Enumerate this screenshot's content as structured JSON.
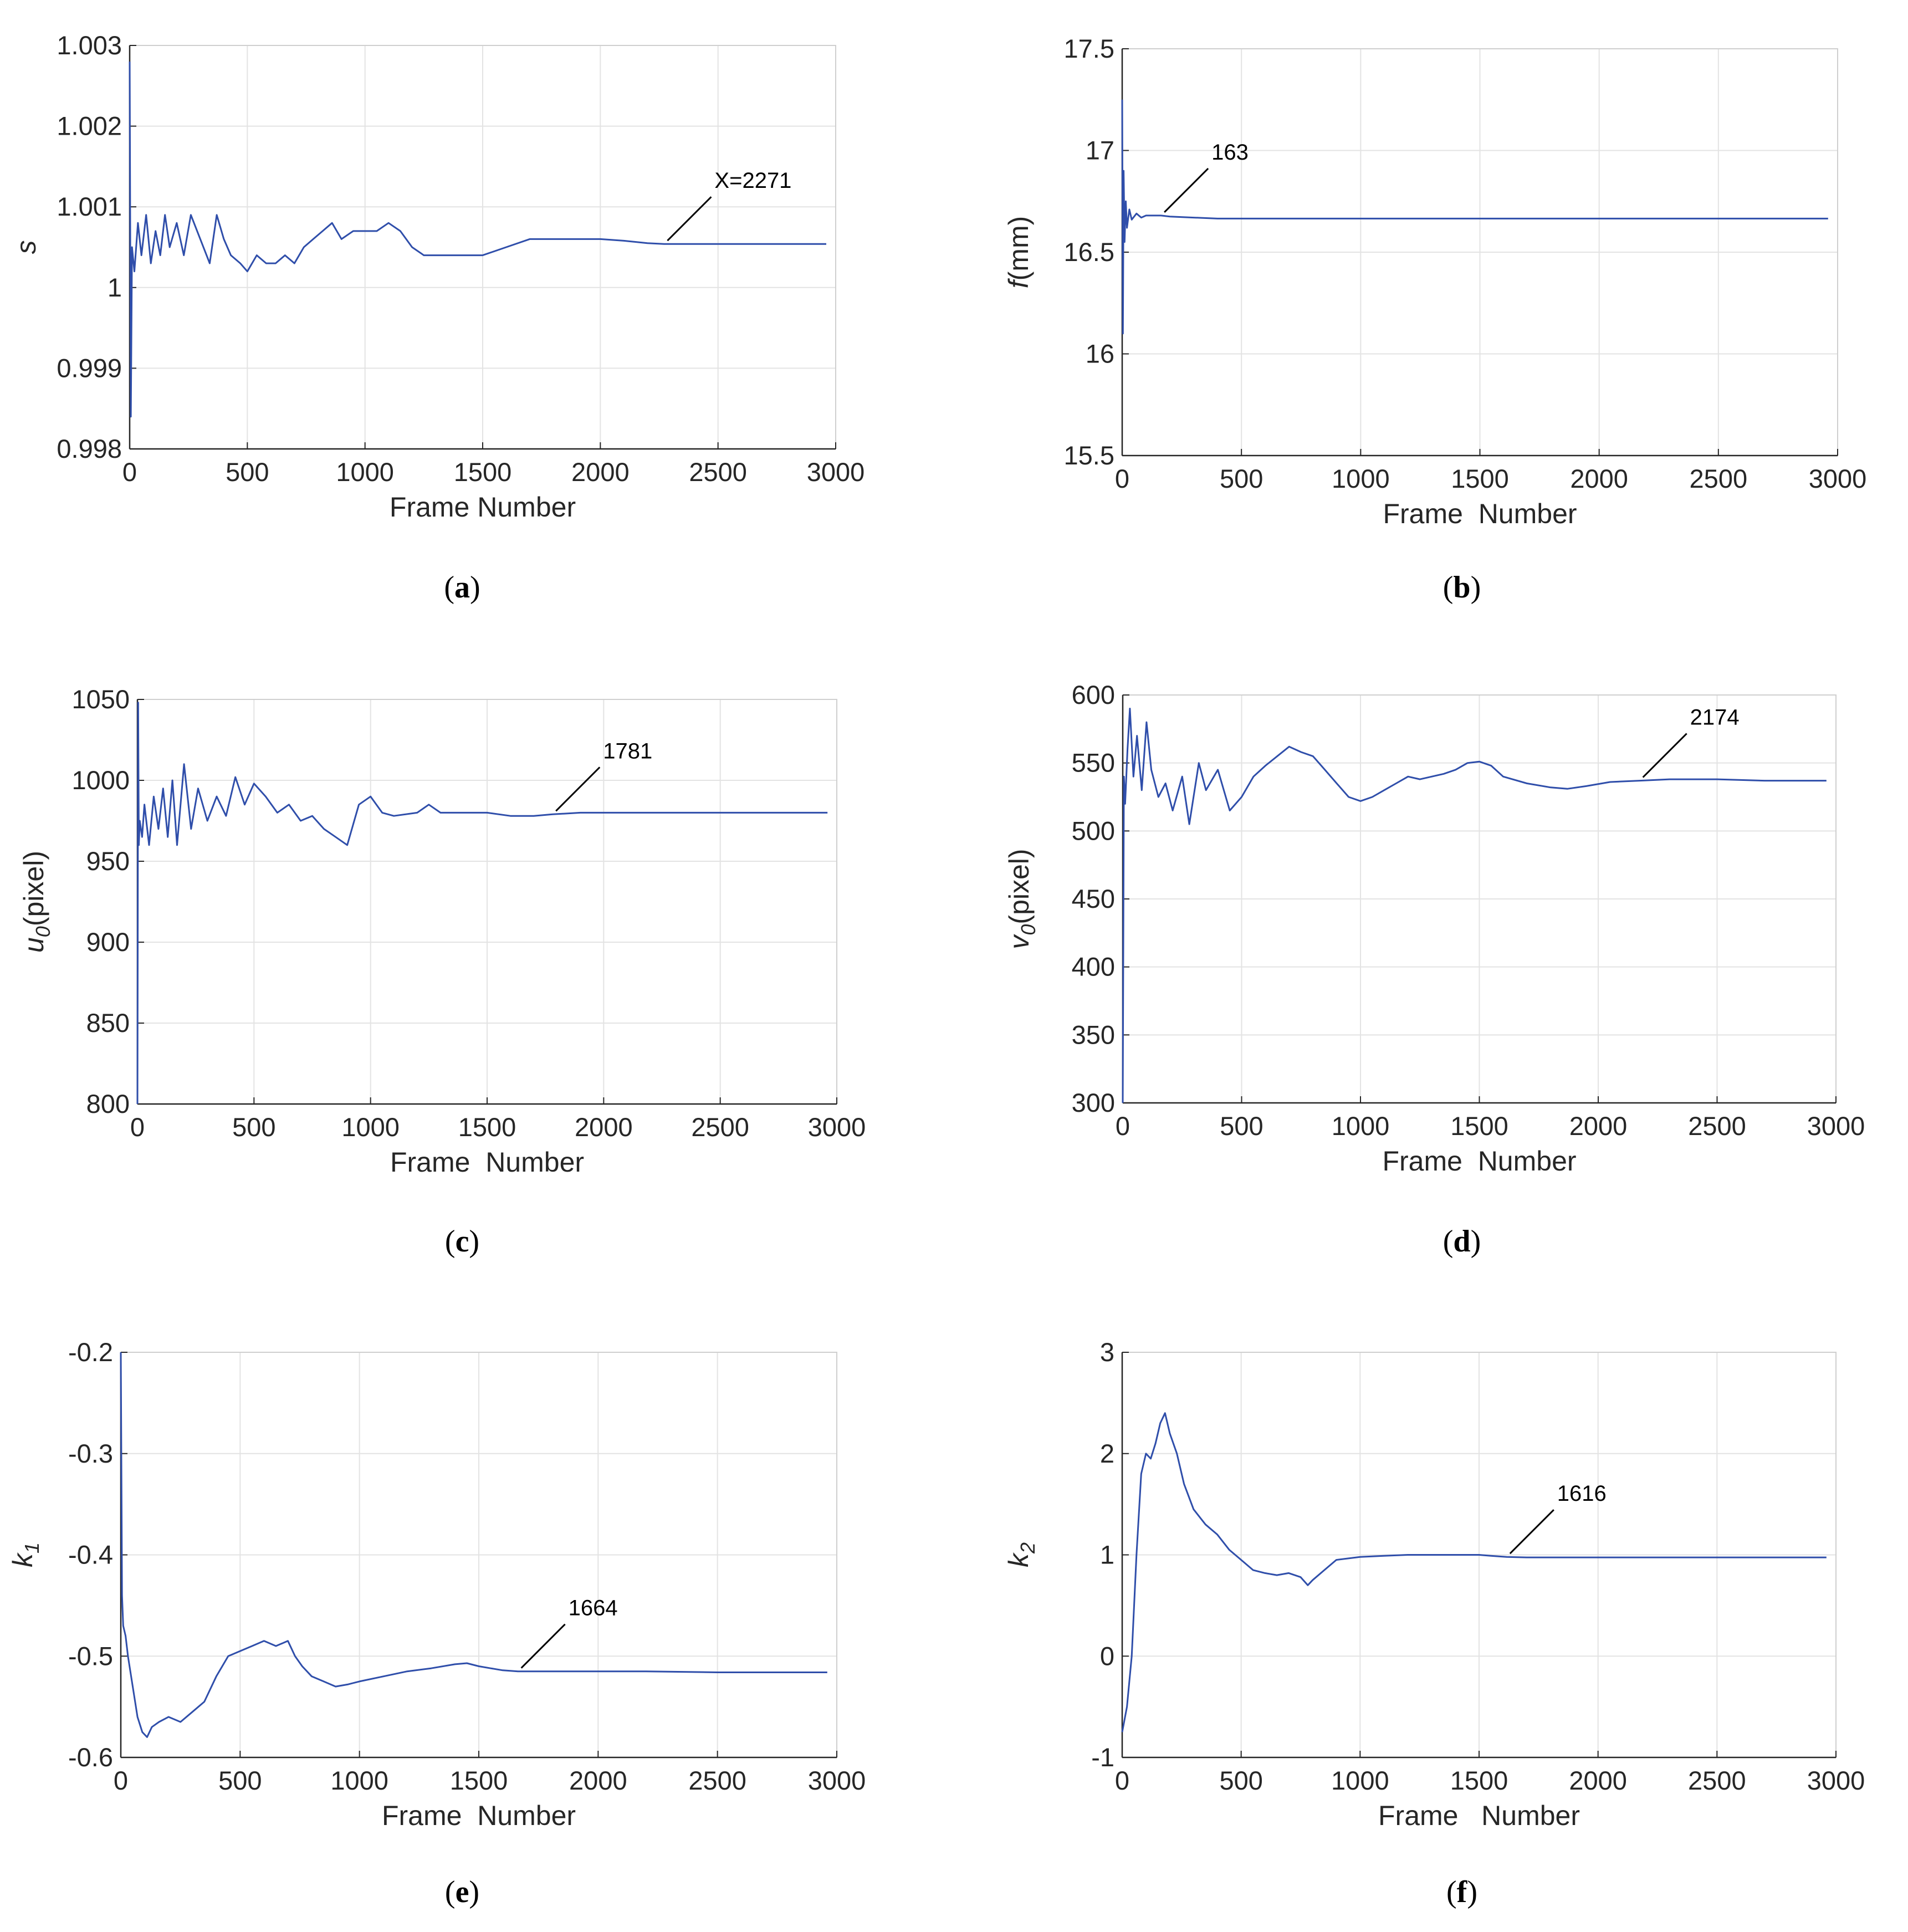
{
  "chart_data": [
    {
      "id": "a",
      "type": "line",
      "caption": "a",
      "xlabel": "Frame Number",
      "ylabel": "s",
      "ylabel_italic": true,
      "xlim": [
        0,
        3000
      ],
      "ylim": [
        0.998,
        1.003
      ],
      "xticks": [
        0,
        500,
        1000,
        1500,
        2000,
        2500,
        3000
      ],
      "yticks": [
        0.998,
        0.999,
        1,
        1.001,
        1.002,
        1.003
      ],
      "ytick_labels": [
        "0.998",
        "0.999",
        "1",
        "1.001",
        "1.002",
        "1.003"
      ],
      "grid": true,
      "line_color": "#2f4eaa",
      "series": [
        {
          "x": [
            0,
            5,
            10,
            20,
            35,
            50,
            70,
            90,
            110,
            130,
            150,
            170,
            200,
            230,
            260,
            300,
            340,
            370,
            400,
            430,
            470,
            500,
            540,
            580,
            620,
            660,
            700,
            740,
            780,
            820,
            860,
            900,
            950,
            1000,
            1050,
            1100,
            1150,
            1200,
            1250,
            1300,
            1350,
            1400,
            1450,
            1500,
            1600,
            1700,
            1800,
            1900,
            2000,
            2100,
            2200,
            2271,
            2400,
            2600,
            2800,
            2960
          ],
          "y": [
            1.0028,
            0.9984,
            1.0005,
            1.0002,
            1.0008,
            1.0004,
            1.0009,
            1.0003,
            1.0007,
            1.0004,
            1.0009,
            1.0005,
            1.0008,
            1.0004,
            1.0009,
            1.0006,
            1.0003,
            1.0009,
            1.0006,
            1.0004,
            1.0003,
            1.0002,
            1.0004,
            1.0003,
            1.0003,
            1.0004,
            1.0003,
            1.0005,
            1.0006,
            1.0007,
            1.0008,
            1.0006,
            1.0007,
            1.0007,
            1.0007,
            1.0008,
            1.0007,
            1.0005,
            1.0004,
            1.0004,
            1.0004,
            1.0004,
            1.0004,
            1.0004,
            1.0005,
            1.0006,
            1.0006,
            1.0006,
            1.0006,
            1.00058,
            1.00055,
            1.00054,
            1.00054,
            1.00054,
            1.00054,
            1.00054
          ]
        }
      ],
      "annotations": [
        {
          "text": "X=2271",
          "x": 2271,
          "y": 1.00054
        }
      ]
    },
    {
      "id": "b",
      "type": "line",
      "caption": "b",
      "xlabel": "Frame  Number",
      "ylabel": "f(mm)",
      "ylabel_italic_prefix": "f",
      "xlim": [
        0,
        3000
      ],
      "ylim": [
        15.5,
        17.5
      ],
      "xticks": [
        0,
        500,
        1000,
        1500,
        2000,
        2500,
        3000
      ],
      "yticks": [
        15.5,
        16,
        16.5,
        17,
        17.5
      ],
      "ytick_labels": [
        "15.5",
        "16",
        "16.5",
        "17",
        "17.5"
      ],
      "grid": true,
      "line_color": "#2f4eaa",
      "series": [
        {
          "x": [
            0,
            3,
            6,
            10,
            15,
            20,
            30,
            40,
            60,
            80,
            100,
            130,
            163,
            200,
            300,
            400,
            500,
            700,
            1000,
            1500,
            2000,
            2500,
            2960
          ],
          "y": [
            17.25,
            16.1,
            16.9,
            16.55,
            16.75,
            16.62,
            16.71,
            16.66,
            16.69,
            16.67,
            16.68,
            16.68,
            16.68,
            16.675,
            16.67,
            16.665,
            16.665,
            16.665,
            16.665,
            16.665,
            16.665,
            16.665,
            16.665
          ]
        }
      ],
      "annotations": [
        {
          "text": "163",
          "x": 163,
          "y": 16.68
        }
      ]
    },
    {
      "id": "c",
      "type": "line",
      "caption": "c",
      "xlabel": "Frame  Number",
      "ylabel": "u0(pixel)",
      "ylabel_main": "u",
      "ylabel_sub": "0",
      "ylabel_rest": "(pixel)",
      "xlim": [
        0,
        3000
      ],
      "ylim": [
        800,
        1050
      ],
      "xticks": [
        0,
        500,
        1000,
        1500,
        2000,
        2500,
        3000
      ],
      "yticks": [
        800,
        850,
        900,
        950,
        1000,
        1050
      ],
      "ytick_labels": [
        "800",
        "850",
        "900",
        "950",
        "1000",
        "1050"
      ],
      "grid": true,
      "line_color": "#2f4eaa",
      "series": [
        {
          "x": [
            0,
            3,
            6,
            10,
            20,
            30,
            50,
            70,
            90,
            110,
            130,
            150,
            170,
            200,
            230,
            260,
            300,
            340,
            380,
            420,
            460,
            500,
            550,
            600,
            650,
            700,
            750,
            800,
            850,
            900,
            950,
            1000,
            1050,
            1100,
            1200,
            1250,
            1300,
            1400,
            1500,
            1600,
            1700,
            1781,
            1900,
            2100,
            2400,
            2700,
            2960
          ],
          "y": [
            800,
            1048,
            960,
            975,
            965,
            985,
            960,
            990,
            970,
            995,
            965,
            1000,
            960,
            1010,
            970,
            995,
            975,
            990,
            978,
            1002,
            985,
            998,
            990,
            980,
            985,
            975,
            978,
            970,
            965,
            960,
            985,
            990,
            980,
            978,
            980,
            985,
            980,
            980,
            980,
            978,
            978,
            979,
            980,
            980,
            980,
            980,
            980
          ]
        }
      ],
      "annotations": [
        {
          "text": "1781",
          "x": 1781,
          "y": 979
        }
      ]
    },
    {
      "id": "d",
      "type": "line",
      "caption": "d",
      "xlabel": "Frame  Number",
      "ylabel": "v0(pixel)",
      "ylabel_main": "v",
      "ylabel_sub": "0",
      "ylabel_rest": "(pixel)",
      "xlim": [
        0,
        3000
      ],
      "ylim": [
        300,
        600
      ],
      "xticks": [
        0,
        500,
        1000,
        1500,
        2000,
        2500,
        3000
      ],
      "yticks": [
        300,
        350,
        400,
        450,
        500,
        550,
        600
      ],
      "ytick_labels": [
        "300",
        "350",
        "400",
        "450",
        "500",
        "550",
        "600"
      ],
      "grid": true,
      "line_color": "#2f4eaa",
      "series": [
        {
          "x": [
            0,
            5,
            10,
            20,
            30,
            45,
            60,
            80,
            100,
            120,
            150,
            180,
            210,
            250,
            280,
            320,
            350,
            400,
            450,
            500,
            550,
            600,
            650,
            700,
            750,
            800,
            850,
            900,
            950,
            1000,
            1050,
            1100,
            1150,
            1200,
            1250,
            1300,
            1350,
            1400,
            1450,
            1500,
            1550,
            1600,
            1700,
            1800,
            1870,
            1950,
            2050,
            2174,
            2300,
            2500,
            2700,
            2960
          ],
          "y": [
            300,
            540,
            520,
            560,
            590,
            540,
            570,
            530,
            580,
            545,
            525,
            535,
            515,
            540,
            505,
            550,
            530,
            545,
            515,
            525,
            540,
            548,
            555,
            562,
            558,
            555,
            545,
            535,
            525,
            522,
            525,
            530,
            535,
            540,
            538,
            540,
            542,
            545,
            550,
            551,
            548,
            540,
            535,
            532,
            531,
            533,
            536,
            537,
            538,
            538,
            537,
            537
          ]
        }
      ],
      "annotations": [
        {
          "text": "2174",
          "x": 2174,
          "y": 537
        }
      ]
    },
    {
      "id": "e",
      "type": "line",
      "caption": "e",
      "xlabel": "Frame  Number",
      "ylabel": "k1",
      "ylabel_main": "k",
      "ylabel_sub": "1",
      "ylabel_rest": "",
      "xlim": [
        0,
        3000
      ],
      "ylim": [
        -0.6,
        -0.2
      ],
      "xticks": [
        0,
        500,
        1000,
        1500,
        2000,
        2500,
        3000
      ],
      "yticks": [
        -0.6,
        -0.5,
        -0.4,
        -0.3,
        -0.2
      ],
      "ytick_labels": [
        "-0.6",
        "-0.5",
        "-0.4",
        "-0.3",
        "-0.2"
      ],
      "grid": true,
      "line_color": "#2f4eaa",
      "series": [
        {
          "x": [
            0,
            5,
            10,
            20,
            30,
            50,
            70,
            90,
            110,
            130,
            160,
            200,
            250,
            300,
            350,
            400,
            450,
            500,
            550,
            600,
            650,
            700,
            730,
            760,
            800,
            850,
            900,
            950,
            1000,
            1100,
            1200,
            1300,
            1400,
            1450,
            1500,
            1550,
            1600,
            1664,
            1800,
            2000,
            2200,
            2500,
            2800,
            2960
          ],
          "y": [
            -0.2,
            -0.44,
            -0.47,
            -0.48,
            -0.5,
            -0.53,
            -0.56,
            -0.575,
            -0.58,
            -0.57,
            -0.565,
            -0.56,
            -0.565,
            -0.555,
            -0.545,
            -0.52,
            -0.5,
            -0.495,
            -0.49,
            -0.485,
            -0.49,
            -0.485,
            -0.5,
            -0.51,
            -0.52,
            -0.525,
            -0.53,
            -0.528,
            -0.525,
            -0.52,
            -0.515,
            -0.512,
            -0.508,
            -0.507,
            -0.51,
            -0.512,
            -0.514,
            -0.515,
            -0.515,
            -0.515,
            -0.515,
            -0.516,
            -0.516,
            -0.516
          ]
        }
      ],
      "annotations": [
        {
          "text": "1664",
          "x": 1664,
          "y": -0.515
        }
      ]
    },
    {
      "id": "f",
      "type": "line",
      "caption": "f",
      "xlabel": "Frame   Number",
      "ylabel": "k2",
      "ylabel_main": "k",
      "ylabel_sub": "2",
      "ylabel_rest": "",
      "xlim": [
        0,
        3000
      ],
      "ylim": [
        -1,
        3
      ],
      "xticks": [
        0,
        500,
        1000,
        1500,
        2000,
        2500,
        3000
      ],
      "yticks": [
        -1,
        0,
        1,
        2,
        3
      ],
      "ytick_labels": [
        "-1",
        "0",
        "1",
        "2",
        "3"
      ],
      "grid": true,
      "line_color": "#2f4eaa",
      "series": [
        {
          "x": [
            0,
            20,
            40,
            60,
            80,
            100,
            120,
            140,
            160,
            180,
            200,
            230,
            260,
            300,
            350,
            400,
            450,
            500,
            550,
            600,
            650,
            700,
            750,
            780,
            800,
            850,
            900,
            1000,
            1100,
            1200,
            1300,
            1400,
            1500,
            1550,
            1616,
            1700,
            1900,
            2200,
            2500,
            2800,
            2960
          ],
          "y": [
            -0.75,
            -0.5,
            0,
            1,
            1.8,
            2.0,
            1.95,
            2.1,
            2.3,
            2.4,
            2.2,
            2.0,
            1.7,
            1.45,
            1.3,
            1.2,
            1.05,
            0.95,
            0.85,
            0.82,
            0.8,
            0.82,
            0.78,
            0.7,
            0.75,
            0.85,
            0.95,
            0.98,
            0.99,
            1.0,
            1.0,
            1.0,
            1.0,
            0.99,
            0.98,
            0.975,
            0.975,
            0.975,
            0.975,
            0.975,
            0.975
          ]
        }
      ],
      "annotations": [
        {
          "text": "1616",
          "x": 1616,
          "y": 0.98
        }
      ]
    }
  ]
}
